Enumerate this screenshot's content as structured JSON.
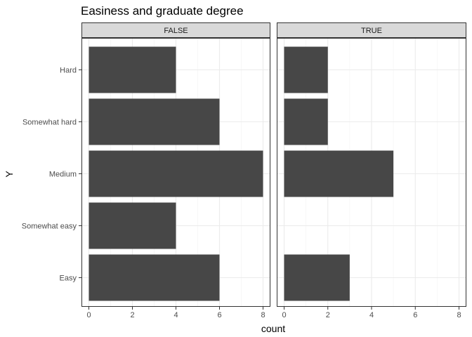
{
  "chart_data": {
    "type": "bar",
    "orientation": "horizontal",
    "title": "Easiness and graduate degree",
    "xlabel": "count",
    "ylabel": "Y",
    "categories": [
      "Hard",
      "Somewhat hard",
      "Medium",
      "Somewhat easy",
      "Easy"
    ],
    "xlim": [
      0,
      8
    ],
    "x_ticks": [
      0,
      2,
      4,
      6,
      8
    ],
    "grid": true,
    "bar_color": "#474747",
    "panels": [
      {
        "label": "FALSE",
        "values": [
          4,
          6,
          8,
          4,
          6
        ]
      },
      {
        "label": "TRUE",
        "values": [
          2,
          2,
          5,
          0,
          3
        ]
      }
    ]
  }
}
